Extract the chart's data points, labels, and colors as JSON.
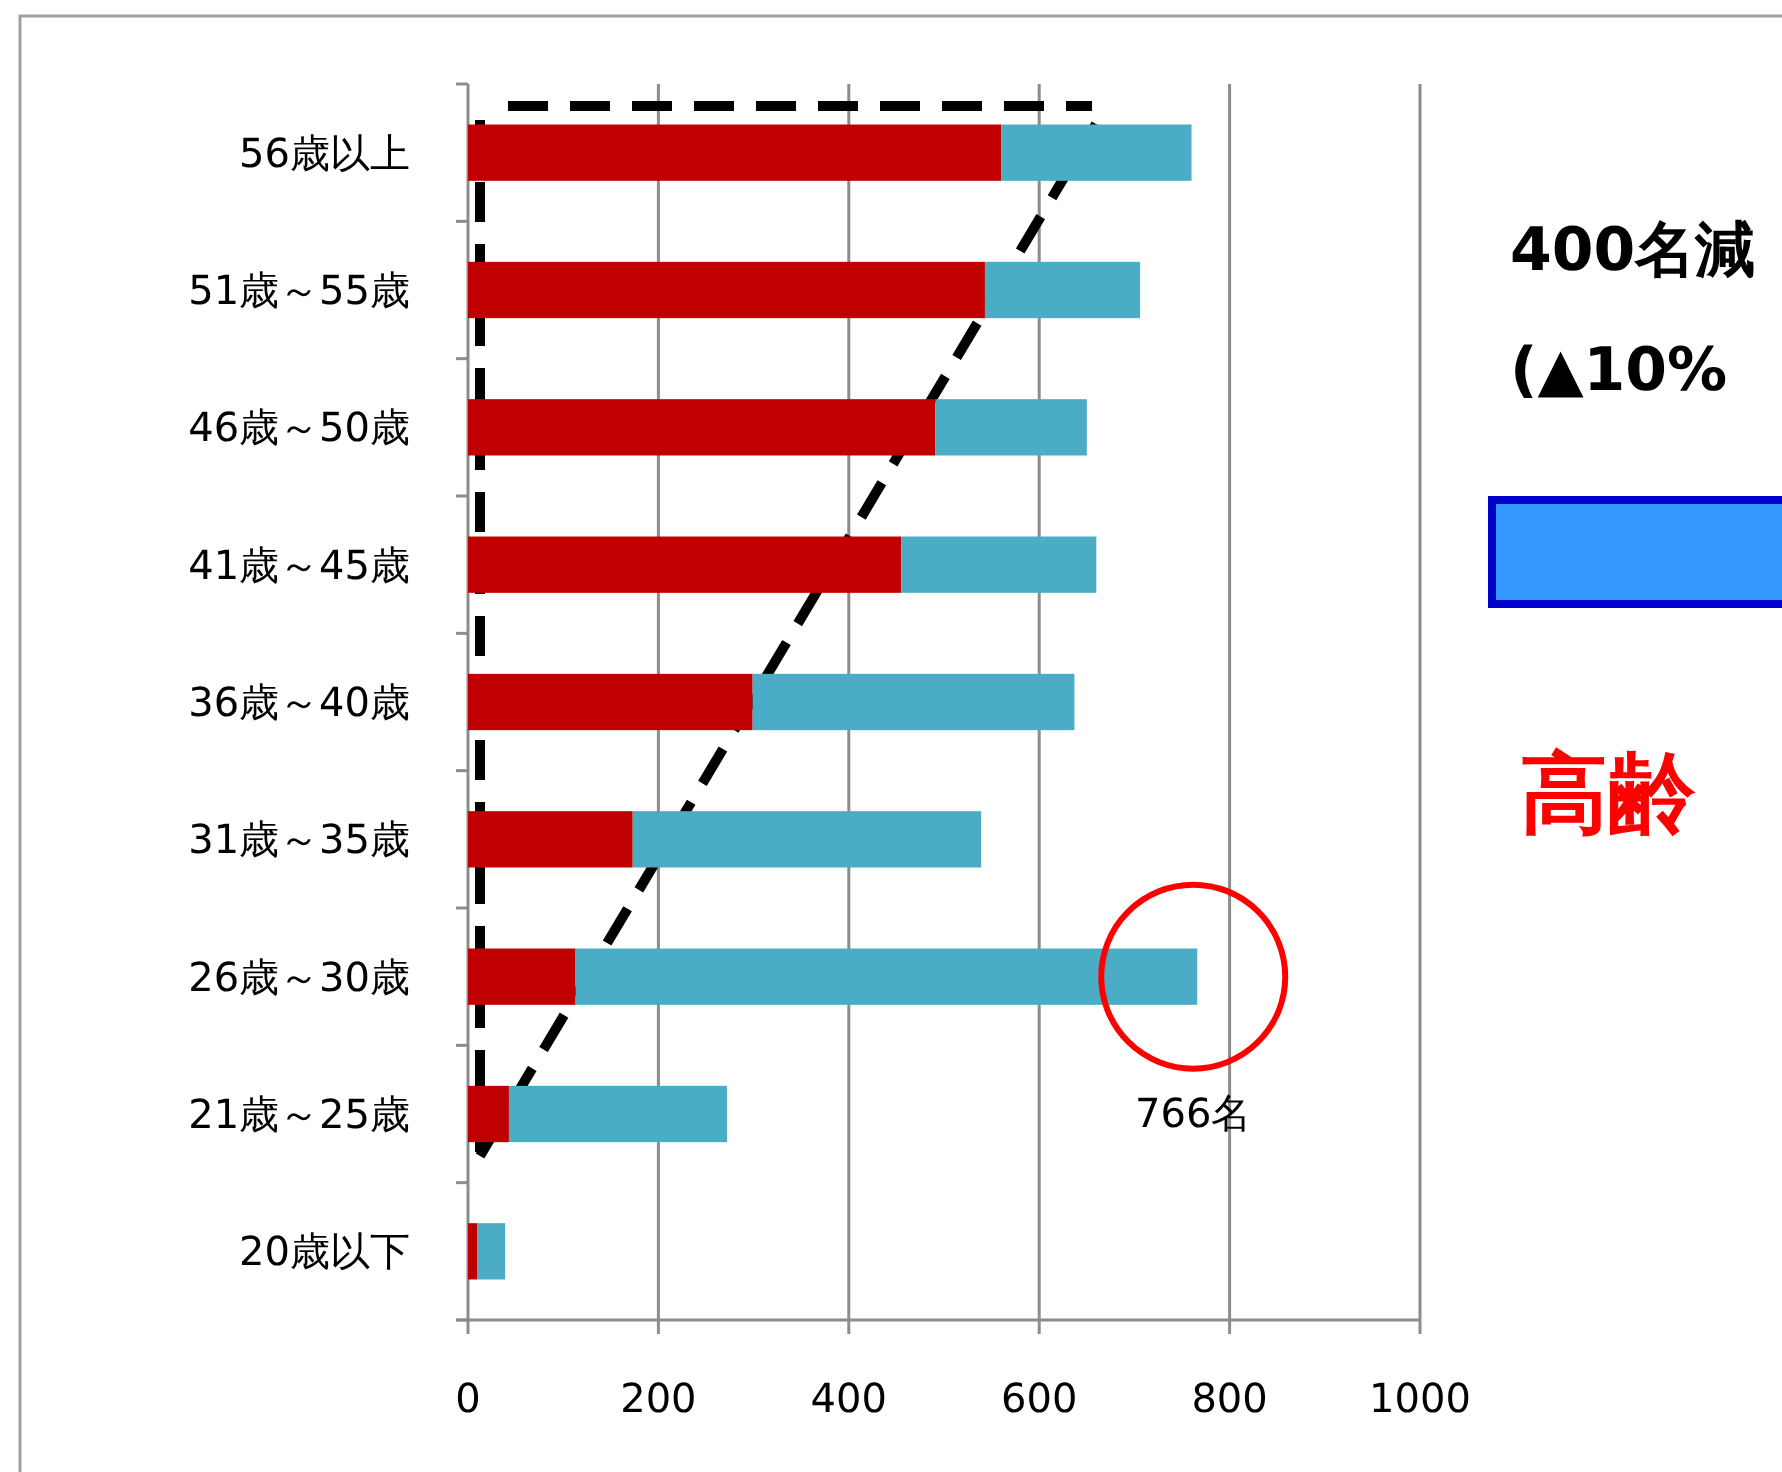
{
  "chart_data": {
    "type": "bar",
    "orientation": "horizontal",
    "stacked": true,
    "categories": [
      "56歳以上",
      "51歳～55歳",
      "46歳～50歳",
      "41歳～45歳",
      "36歳～40歳",
      "31歳～35歳",
      "26歳～30歳",
      "21歳～25歳",
      "20歳以下"
    ],
    "series": [
      {
        "color": "#c00000",
        "values": [
          560,
          543,
          491,
          455,
          299,
          173,
          113,
          43,
          10
        ]
      },
      {
        "color": "#4bacc6",
        "values": [
          200,
          163,
          159,
          205,
          338,
          366,
          653,
          229,
          29
        ]
      }
    ],
    "xlim": [
      0,
      1000
    ],
    "xticks": [
      0,
      200,
      400,
      600,
      800,
      1000
    ],
    "grid": "x",
    "annotations": [
      {
        "text": "766名",
        "x": 766,
        "y": "26歳～30歳"
      },
      "400名減",
      "(▲10%",
      "高齢"
    ]
  }
}
